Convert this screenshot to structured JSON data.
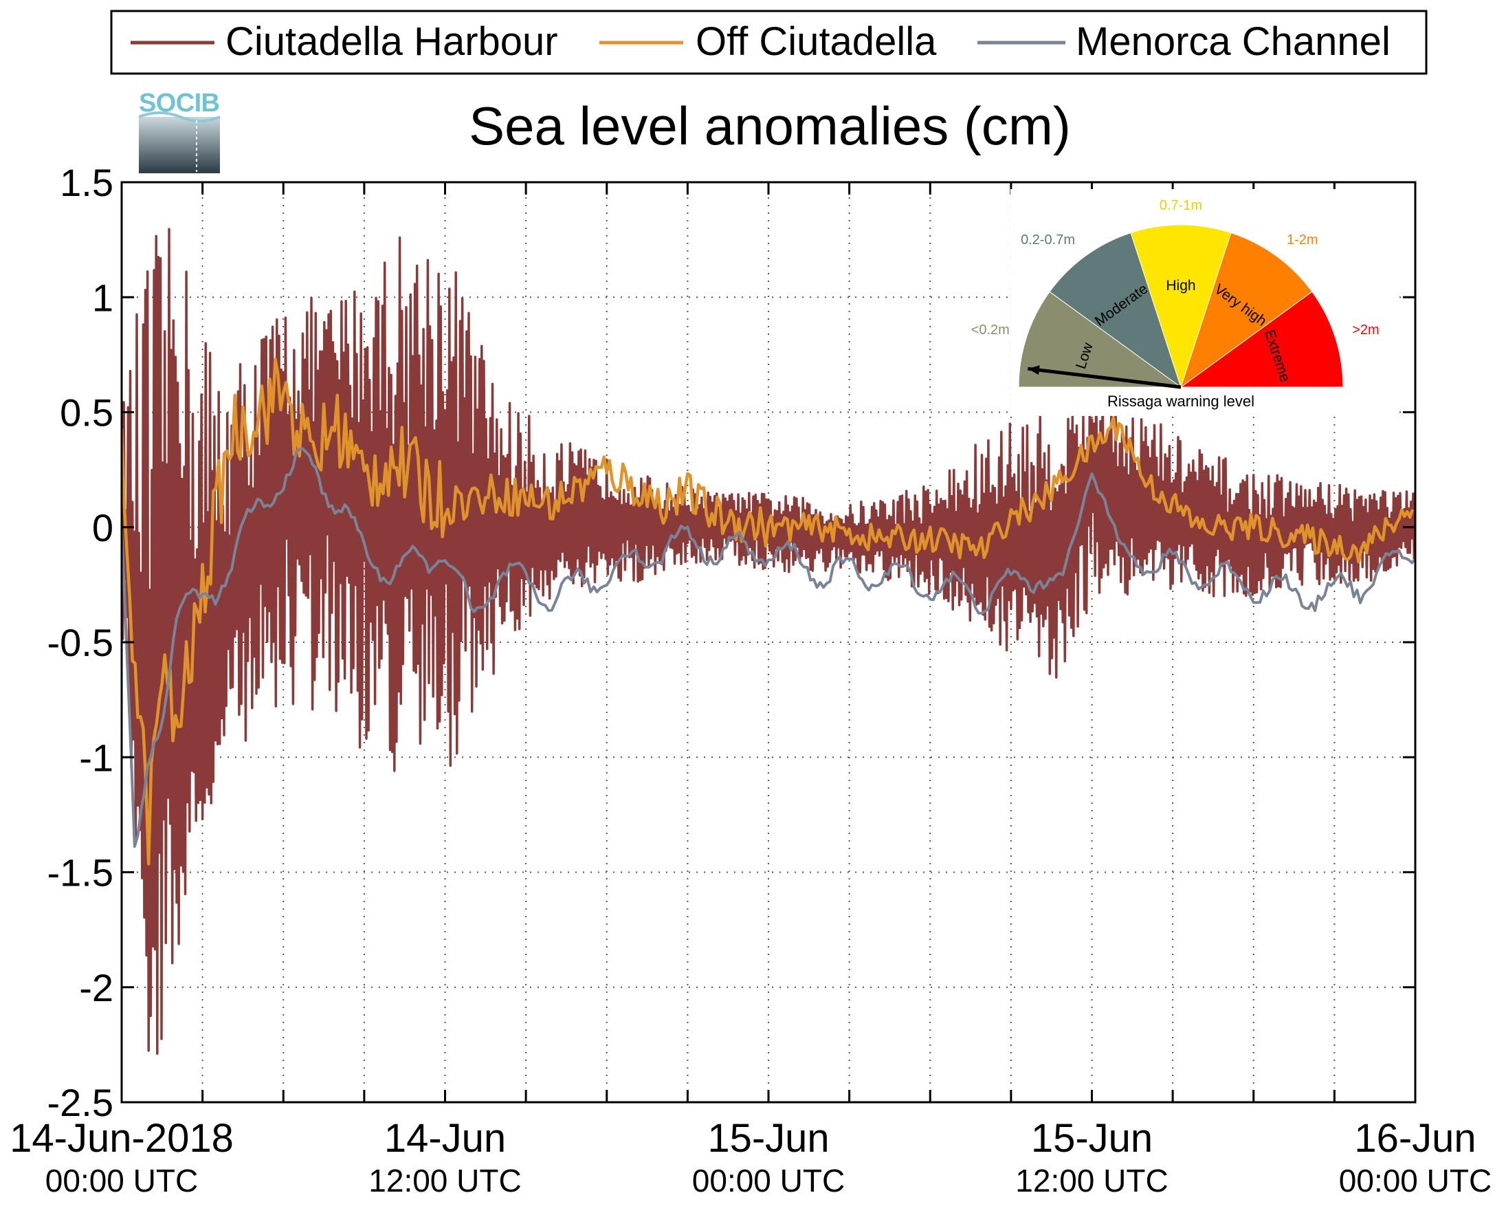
{
  "chart_data": {
    "type": "line",
    "title": "Sea level anomalies (cm)",
    "xlabel": "",
    "ylabel": "",
    "ylim": [
      -2.5,
      1.5
    ],
    "y_ticks": [
      "1.5",
      "1",
      "0.5",
      "0",
      "-0.5",
      "-1",
      "-1.5",
      "-2",
      "-2.5"
    ],
    "y_tick_values": [
      1.5,
      1,
      0.5,
      0,
      -0.5,
      -1,
      -1.5,
      -2,
      -2.5
    ],
    "xlim": [
      "2018-06-14 00:00",
      "2018-06-16 00:00"
    ],
    "x_major_ticks": [
      {
        "time": "2018-06-14 00:00",
        "line1": "14-Jun-2018",
        "line2": "00:00 UTC"
      },
      {
        "time": "2018-06-14 12:00",
        "line1": "14-Jun",
        "line2": "12:00 UTC"
      },
      {
        "time": "2018-06-15 00:00",
        "line1": "15-Jun",
        "line2": "00:00 UTC"
      },
      {
        "time": "2018-06-15 12:00",
        "line1": "15-Jun",
        "line2": "12:00 UTC"
      },
      {
        "time": "2018-06-16 00:00",
        "line1": "16-Jun",
        "line2": "00:00 UTC"
      }
    ],
    "x_gridline_interval_hours": 3,
    "grid": true,
    "legend_position": "top",
    "series": [
      {
        "name": "Ciutadella Harbour",
        "color": "#8b3a3a",
        "sample_hours": [
          0,
          1,
          2,
          3,
          4,
          6,
          8,
          10,
          12,
          14,
          16,
          18,
          20,
          22,
          24,
          27,
          30,
          33,
          35,
          36,
          38,
          40,
          42,
          44,
          46,
          48
        ],
        "values": [
          0.2,
          -1.8,
          0.1,
          -1.2,
          -0.3,
          0.2,
          0.3,
          0.0,
          0.1,
          0.0,
          -0.05,
          0.05,
          0.0,
          0.05,
          0.0,
          -0.05,
          -0.05,
          -0.15,
          -0.05,
          0.2,
          0.05,
          0.0,
          -0.05,
          0.0,
          -0.05,
          0.0
        ],
        "envelope_high": [
          0.5,
          1.3,
          1.3,
          1.0,
          0.7,
          1.0,
          1.0,
          1.3,
          1.3,
          0.6,
          0.4,
          0.3,
          0.2,
          0.15,
          0.15,
          0.1,
          0.2,
          0.5,
          0.5,
          0.7,
          0.5,
          0.35,
          0.25,
          0.2,
          0.2,
          0.15
        ],
        "envelope_low": [
          -0.5,
          -2.3,
          -2.4,
          -1.3,
          -1.0,
          -0.8,
          -0.9,
          -1.1,
          -1.1,
          -0.6,
          -0.3,
          -0.3,
          -0.2,
          -0.15,
          -0.2,
          -0.2,
          -0.3,
          -0.55,
          -0.7,
          -0.3,
          -0.3,
          -0.3,
          -0.3,
          -0.25,
          -0.25,
          -0.15
        ]
      },
      {
        "name": "Off Ciutadella",
        "color": "#e0922b",
        "sample_hours": [
          0,
          0.5,
          1,
          1.5,
          2,
          3,
          4,
          5,
          6,
          7,
          8,
          9,
          10,
          12,
          14,
          16,
          18,
          20,
          21,
          22,
          24,
          26,
          28,
          30,
          32,
          33,
          34,
          36,
          37,
          38,
          40,
          42,
          44,
          46,
          48
        ],
        "values": [
          0.3,
          -0.6,
          -1.3,
          -0.6,
          -0.9,
          -0.3,
          0.4,
          0.5,
          0.6,
          0.3,
          0.45,
          0.2,
          0.3,
          0.1,
          0.15,
          0.1,
          0.25,
          0.1,
          0.15,
          0.05,
          0.0,
          0.0,
          -0.05,
          -0.05,
          -0.1,
          0.05,
          0.1,
          0.35,
          0.45,
          0.2,
          0.0,
          0.0,
          -0.05,
          -0.1,
          0.1
        ]
      },
      {
        "name": "Menorca Channel",
        "color": "#7a8499",
        "sample_hours": [
          0,
          0.5,
          1,
          1.5,
          2,
          3,
          4,
          5,
          6,
          7,
          8,
          9,
          10,
          12,
          13,
          14,
          16,
          18,
          20,
          21,
          22,
          24,
          26,
          28,
          30,
          32,
          34,
          35,
          36,
          37,
          38,
          40,
          42,
          44,
          46,
          48
        ],
        "values": [
          0.0,
          -1.5,
          -1.0,
          -0.8,
          -0.4,
          -0.3,
          -0.2,
          0.1,
          0.2,
          0.3,
          0.1,
          -0.1,
          -0.2,
          -0.1,
          -0.4,
          -0.2,
          -0.3,
          -0.2,
          -0.1,
          -0.05,
          -0.1,
          -0.1,
          -0.2,
          -0.2,
          -0.25,
          -0.3,
          -0.2,
          -0.25,
          0.3,
          -0.1,
          -0.15,
          -0.2,
          -0.25,
          -0.3,
          -0.25,
          -0.1
        ]
      }
    ],
    "gauge": {
      "title": "Rissaga warning level",
      "segments": [
        {
          "label": "Low",
          "range": "<0.2m",
          "color": "#8b8e6e",
          "range_color": "#8b8e6e"
        },
        {
          "label": "Moderate",
          "range": "0.2-0.7m",
          "color": "#5f7a78",
          "range_color": "#5f7a78"
        },
        {
          "label": "High",
          "range": "0.7-1m",
          "color": "#ffe600",
          "range_color": "#e8d000"
        },
        {
          "label": "Very high",
          "range": "1-2m",
          "color": "#ff8000",
          "range_color": "#ff8000"
        },
        {
          "label": "Extreme",
          "range": ">2m",
          "color": "#ff0000",
          "range_color": "#ff0000"
        }
      ],
      "current_level": "Low"
    }
  },
  "logo": {
    "text": "SOCIB",
    "text_color": "#6fc3d5",
    "gradient_top": "#c8d8dc",
    "gradient_bottom": "#2c3a44"
  }
}
